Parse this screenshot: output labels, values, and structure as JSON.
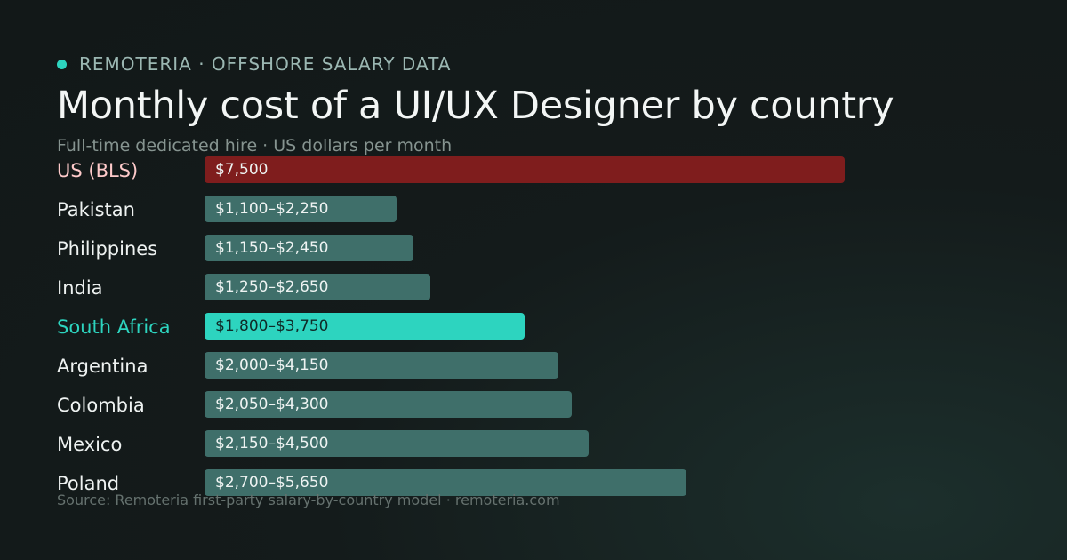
{
  "header": {
    "eyebrow": "REMOTERIA · OFFSHORE SALARY DATA",
    "accent_color": "#2dd4bf",
    "title": "Monthly cost of a UI/UX Designer by country",
    "subtitle": "Full-time dedicated hire · US dollars per month"
  },
  "footer": {
    "source": "Source: Remoteria first-party salary-by-country model · remoteria.com"
  },
  "colors": {
    "benchmark_bar": "#7f1d1d",
    "benchmark_label": "#fecaca",
    "highlight_bar": "#2dd4bf",
    "highlight_label": "#2dd4bf",
    "default_bar": "#3f6f6a",
    "default_label": "#eef2f1",
    "highlight_value_text": "#0f2a27"
  },
  "chart_data": {
    "type": "bar",
    "orientation": "horizontal",
    "title": "Monthly cost of a UI/UX Designer by country",
    "subtitle": "Full-time dedicated hire · US dollars per month",
    "unit": "US dollars per month",
    "xlim": [
      0,
      8250
    ],
    "grid": false,
    "legend": "none",
    "rows": [
      {
        "label": "US (BLS)",
        "low": 7500,
        "high": 7500,
        "value_label": "$7,500",
        "style": "benchmark"
      },
      {
        "label": "Pakistan",
        "low": 1100,
        "high": 2250,
        "value_label": "$1,100–$2,250",
        "style": "default"
      },
      {
        "label": "Philippines",
        "low": 1150,
        "high": 2450,
        "value_label": "$1,150–$2,450",
        "style": "default"
      },
      {
        "label": "India",
        "low": 1250,
        "high": 2650,
        "value_label": "$1,250–$2,650",
        "style": "default"
      },
      {
        "label": "South Africa",
        "low": 1800,
        "high": 3750,
        "value_label": "$1,800–$3,750",
        "style": "highlight"
      },
      {
        "label": "Argentina",
        "low": 2000,
        "high": 4150,
        "value_label": "$2,000–$4,150",
        "style": "default"
      },
      {
        "label": "Colombia",
        "low": 2050,
        "high": 4300,
        "value_label": "$2,050–$4,300",
        "style": "default"
      },
      {
        "label": "Mexico",
        "low": 2150,
        "high": 4500,
        "value_label": "$2,150–$4,500",
        "style": "default"
      },
      {
        "label": "Poland",
        "low": 2700,
        "high": 5650,
        "value_label": "$2,700–$5,650",
        "style": "default"
      }
    ]
  }
}
